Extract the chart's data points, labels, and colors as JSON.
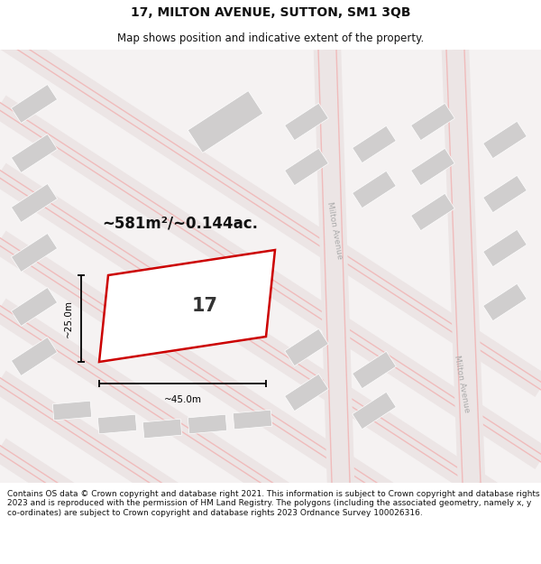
{
  "title": "17, MILTON AVENUE, SUTTON, SM1 3QB",
  "subtitle": "Map shows position and indicative extent of the property.",
  "footer": "Contains OS data © Crown copyright and database right 2021. This information is subject to Crown copyright and database rights 2023 and is reproduced with the permission of HM Land Registry. The polygons (including the associated geometry, namely x, y co-ordinates) are subject to Crown copyright and database rights 2023 Ordnance Survey 100026316.",
  "area_label": "~581m²/~0.144ac.",
  "width_label": "~45.0m",
  "height_label": "~25.0m",
  "plot_number": "17",
  "bg_color": "#ffffff",
  "map_bg": "#f5f2f2",
  "road_fill": "#ece5e5",
  "road_stripe": "#f0bbbb",
  "block_color": "#d0cece",
  "plot_outline": "#cc0000",
  "plot_fill": "#ffffff",
  "street_label": "Milton Avenue",
  "dim_color": "#000000",
  "title_fontsize": 10,
  "subtitle_fontsize": 8.5,
  "footer_fontsize": 6.5
}
